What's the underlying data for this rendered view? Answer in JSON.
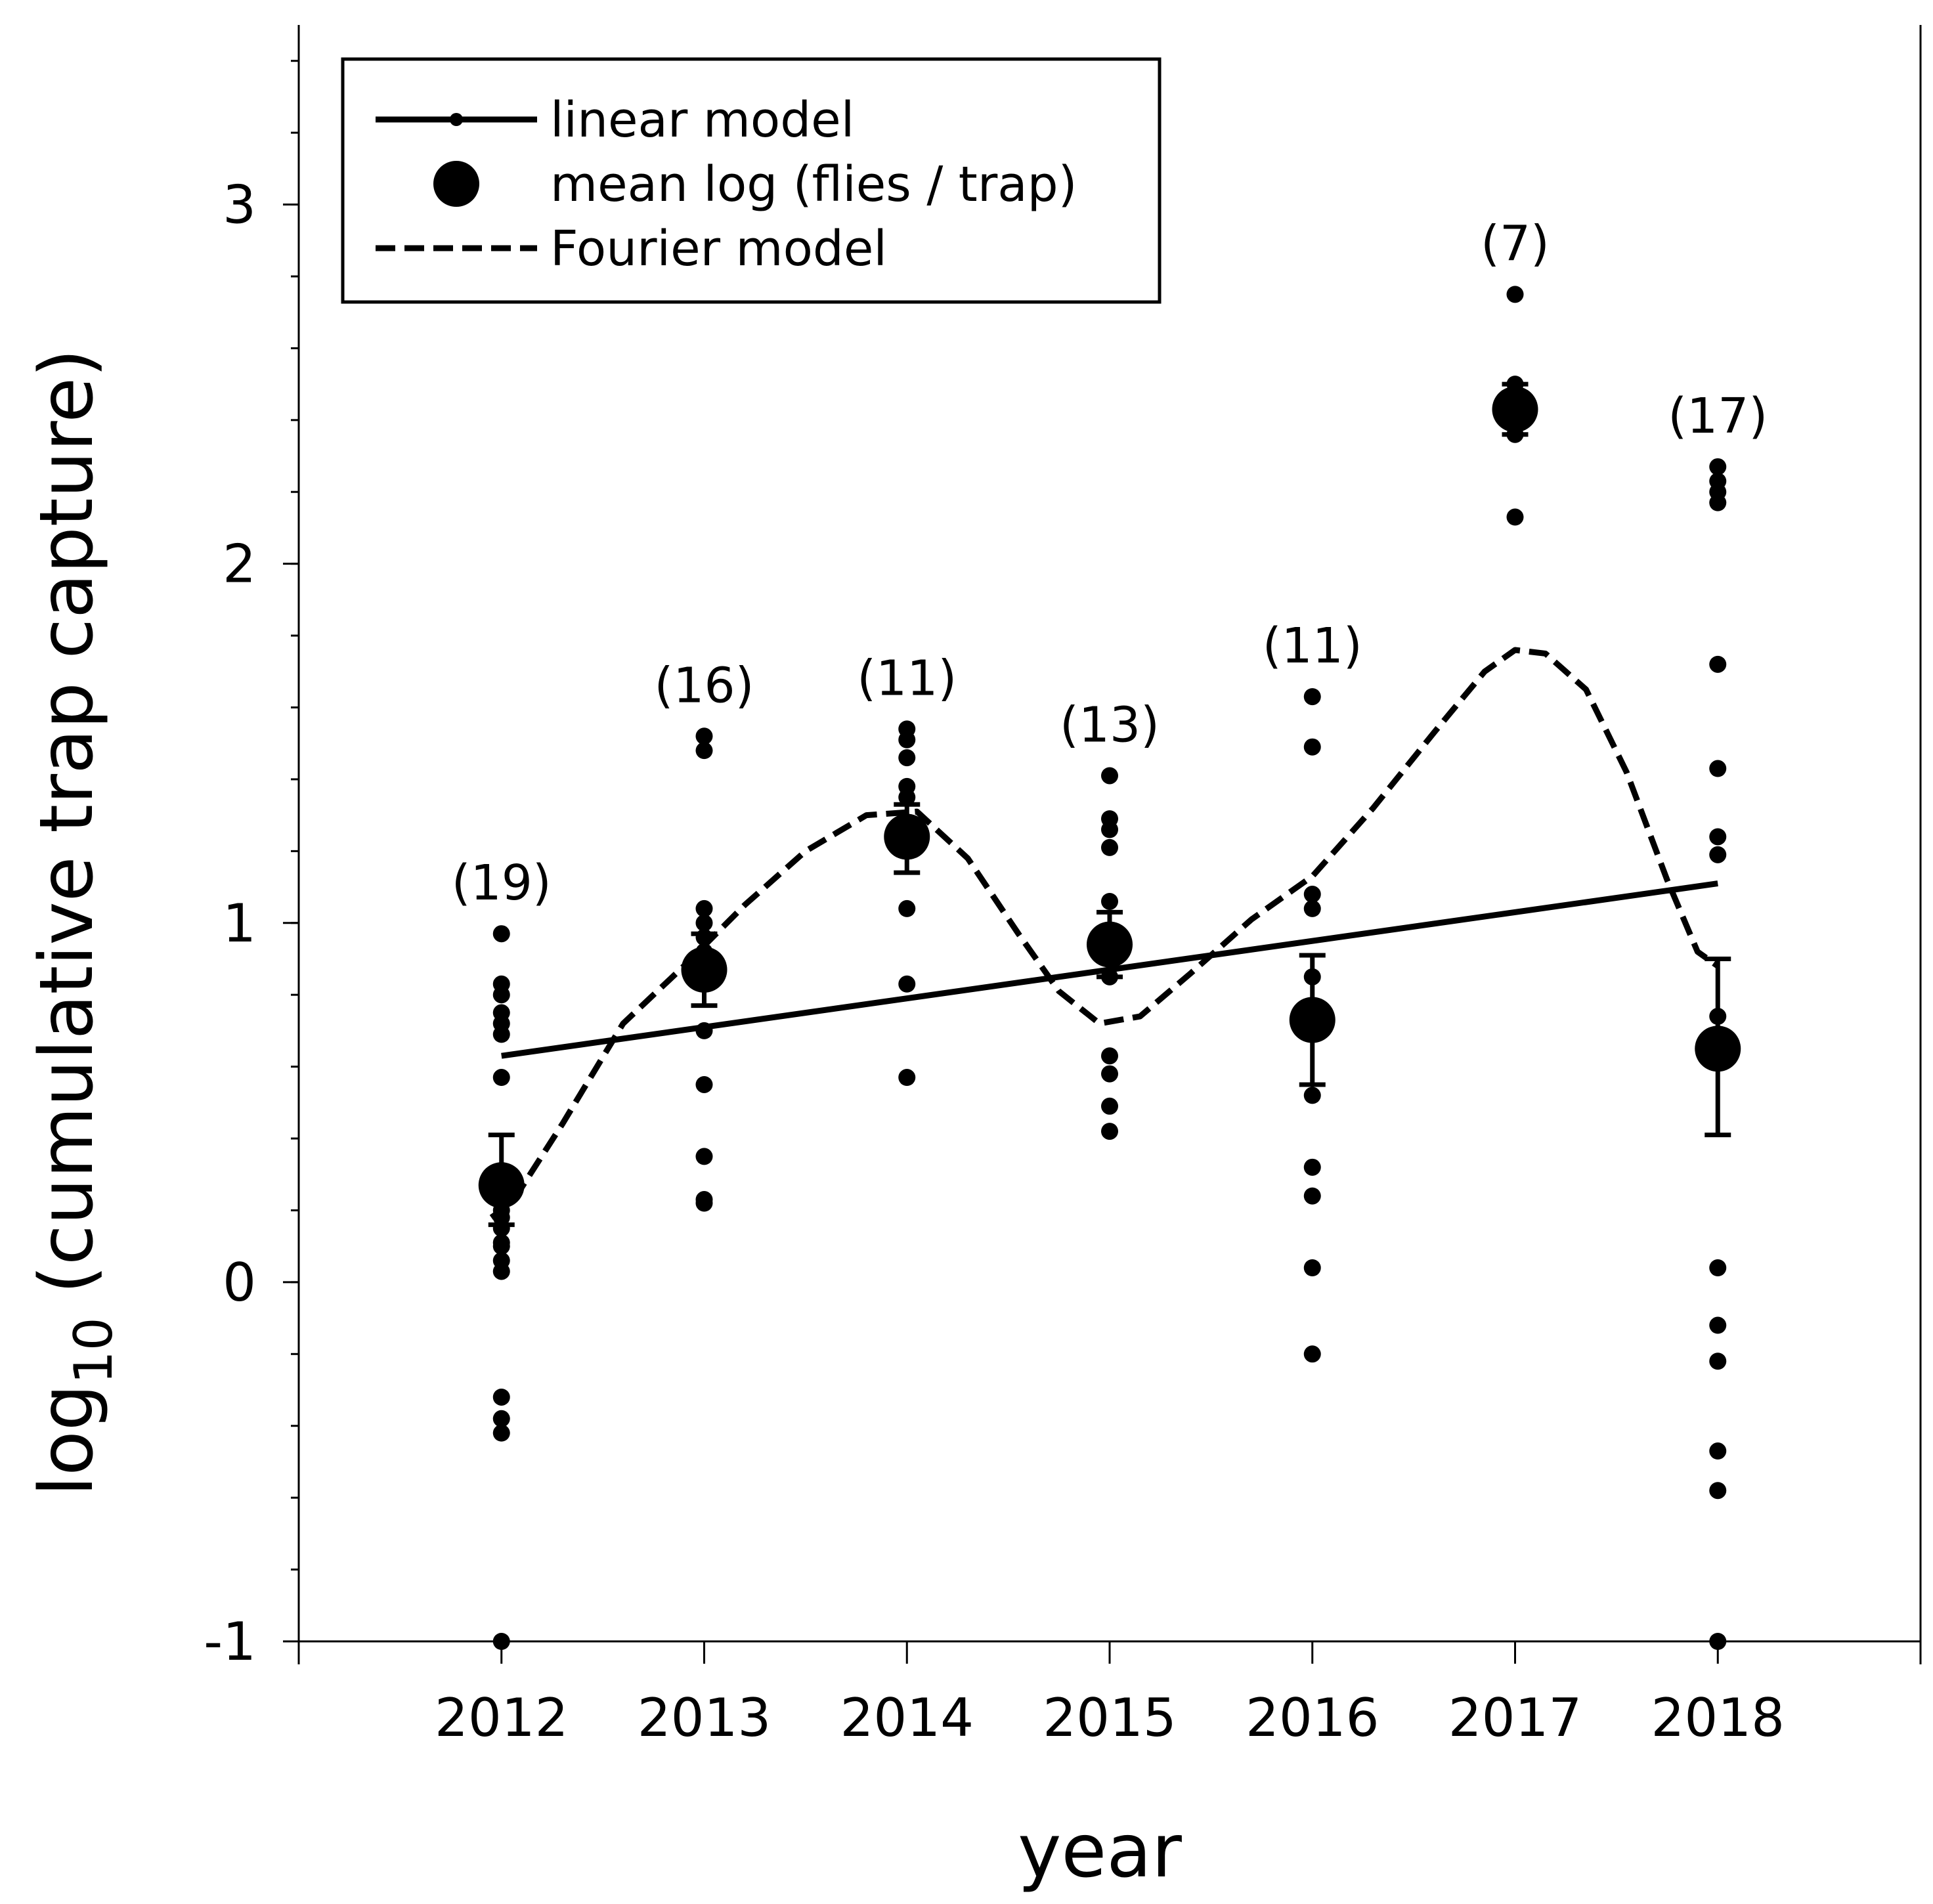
{
  "chart_data": {
    "type": "scatter",
    "xlabel": "year",
    "ylabel_main": "log",
    "ylabel_sub": "10",
    "ylabel_rest": " (cumulative trap capture)",
    "ylim": [
      -1,
      3.5
    ],
    "xlim": [
      2011,
      2019
    ],
    "y_ticks": [
      {
        "value": -1,
        "label": "-1"
      },
      {
        "value": 0,
        "label": "0"
      },
      {
        "value": 1,
        "label": "1"
      },
      {
        "value": 2,
        "label": "2"
      },
      {
        "value": 3,
        "label": "3"
      }
    ],
    "y_minor_step": 0.2,
    "categories": [
      "2012",
      "2013",
      "2014",
      "2015",
      "2016",
      "2017",
      "2018"
    ],
    "legend": {
      "position": "top-left",
      "entries": [
        {
          "key": "linear",
          "label": "linear model"
        },
        {
          "key": "mean",
          "label": "mean log (flies / trap)"
        },
        {
          "key": "fourier",
          "label": "Fourier model"
        }
      ]
    },
    "groups": [
      {
        "year": 2012,
        "n_label": "(19)",
        "mean": 0.27,
        "err_hi": 0.41,
        "err_lo": 0.16,
        "points": [
          0.97,
          0.83,
          0.8,
          0.75,
          0.72,
          0.69,
          0.57,
          0.2,
          0.18,
          0.15,
          0.11,
          0.1,
          0.06,
          0.03,
          -0.32,
          -0.38,
          -0.42,
          -1.0
        ]
      },
      {
        "year": 2013,
        "n_label": "(16)",
        "mean": 0.87,
        "err_hi": 0.97,
        "err_lo": 0.77,
        "points": [
          1.52,
          1.48,
          1.04,
          1.0,
          0.96,
          0.92,
          0.7,
          0.55,
          0.35,
          0.23,
          0.22
        ]
      },
      {
        "year": 2014,
        "n_label": "(11)",
        "mean": 1.24,
        "err_hi": 1.33,
        "err_lo": 1.14,
        "points": [
          1.54,
          1.51,
          1.46,
          1.38,
          1.35,
          1.04,
          0.83,
          0.57
        ]
      },
      {
        "year": 2015,
        "n_label": "(13)",
        "mean": 0.94,
        "err_hi": 1.03,
        "err_lo": 0.85,
        "points": [
          1.41,
          1.29,
          1.26,
          1.21,
          1.06,
          0.85,
          0.63,
          0.58,
          0.49,
          0.42
        ]
      },
      {
        "year": 2016,
        "n_label": "(11)",
        "mean": 0.73,
        "err_hi": 0.91,
        "err_lo": 0.55,
        "points": [
          1.63,
          1.49,
          1.08,
          1.04,
          0.85,
          0.52,
          0.32,
          0.24,
          0.04,
          -0.2
        ]
      },
      {
        "year": 2017,
        "n_label": "(7)",
        "mean": 2.43,
        "err_hi": 2.5,
        "err_lo": 2.36,
        "points": [
          2.75,
          2.5,
          2.47,
          2.42,
          2.4,
          2.36,
          2.13
        ]
      },
      {
        "year": 2018,
        "n_label": "(17)",
        "mean": 0.65,
        "err_hi": 0.9,
        "err_lo": 0.41,
        "points": [
          2.27,
          2.23,
          2.2,
          2.17,
          1.72,
          1.43,
          1.24,
          1.19,
          0.74,
          0.04,
          -0.12,
          -0.22,
          -0.47,
          -0.58,
          -1.0
        ]
      }
    ],
    "linear_model": {
      "start": [
        2012,
        0.63
      ],
      "end": [
        2018,
        1.11
      ]
    },
    "fourier_model": [
      [
        2011.95,
        0.18
      ],
      [
        2012.05,
        0.22
      ],
      [
        2012.3,
        0.44
      ],
      [
        2012.6,
        0.72
      ],
      [
        2012.9,
        0.88
      ],
      [
        2013.2,
        1.05
      ],
      [
        2013.5,
        1.2
      ],
      [
        2013.8,
        1.3
      ],
      [
        2014.05,
        1.31
      ],
      [
        2014.3,
        1.18
      ],
      [
        2014.55,
        0.97
      ],
      [
        2014.75,
        0.81
      ],
      [
        2014.95,
        0.72
      ],
      [
        2015.15,
        0.74
      ],
      [
        2015.4,
        0.86
      ],
      [
        2015.7,
        1.01
      ],
      [
        2016.0,
        1.13
      ],
      [
        2016.3,
        1.32
      ],
      [
        2016.6,
        1.53
      ],
      [
        2016.85,
        1.7
      ],
      [
        2017.0,
        1.76
      ],
      [
        2017.15,
        1.75
      ],
      [
        2017.35,
        1.65
      ],
      [
        2017.55,
        1.42
      ],
      [
        2017.75,
        1.12
      ],
      [
        2017.9,
        0.92
      ],
      [
        2018.0,
        0.88
      ]
    ]
  }
}
